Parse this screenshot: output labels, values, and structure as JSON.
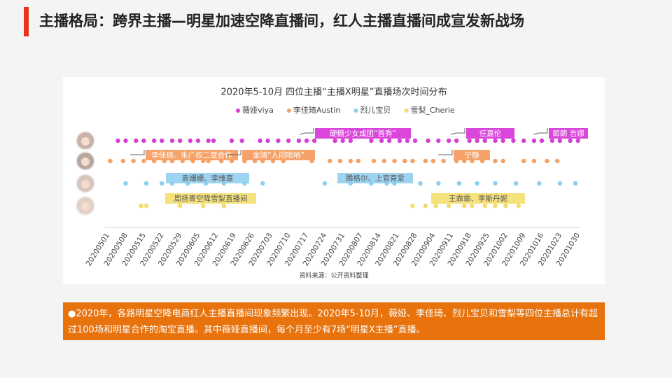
{
  "header": {
    "title": "主播格局：跨界主播—明星加速空降直播间，红人主播直播间成宣发新战场"
  },
  "chart_data": {
    "type": "scatter",
    "title": "2020年5-10月 四位主播“主播X明星”直播场次时间分布",
    "xticks": [
      "20200501",
      "20200508",
      "20200515",
      "20200522",
      "20200529",
      "20200605",
      "20200612",
      "20200619",
      "20200626",
      "20200703",
      "20200710",
      "20200717",
      "20200724",
      "20200731",
      "20200807",
      "20200814",
      "20200821",
      "20200828",
      "20200904",
      "20200911",
      "20200918",
      "20200925",
      "20201002",
      "20201009",
      "20201016",
      "20201023",
      "20201030"
    ],
    "series": [
      {
        "name": "薇娅viya",
        "color": "#d63fd6",
        "x": [
          "20200506",
          "20200509",
          "20200513",
          "20200516",
          "20200520",
          "20200523",
          "20200527",
          "20200530",
          "20200603",
          "20200606",
          "20200610",
          "20200612",
          "20200619",
          "20200623",
          "20200630",
          "20200703",
          "20200707",
          "20200711",
          "20200715",
          "20200718",
          "20200721",
          "20200729",
          "20200801",
          "20200804",
          "20200812",
          "20200816",
          "20200819",
          "20200823",
          "20200826",
          "20200829",
          "20200903",
          "20200907",
          "20200911",
          "20200914",
          "20200919",
          "20200922",
          "20200925",
          "20200929",
          "20201002",
          "20201006",
          "20201010",
          "20201014",
          "20201017",
          "20201021",
          "20201024",
          "20201028",
          "20201031"
        ]
      },
      {
        "name": "李佳琦Austin",
        "color": "#f6a163",
        "x": [
          "20200503",
          "20200508",
          "20200512",
          "20200516",
          "20200520",
          "20200524",
          "20200527",
          "20200531",
          "20200604",
          "20200608",
          "20200610",
          "20200615",
          "20200619",
          "20200624",
          "20200628",
          "20200701",
          "20200705",
          "20200709",
          "20200720",
          "20200727",
          "20200731",
          "20200804",
          "20200807",
          "20200813",
          "20200817",
          "20200821",
          "20200825",
          "20200828",
          "20200902",
          "20200905",
          "20200909",
          "20200914",
          "20200917",
          "20200920",
          "20200924",
          "20200929",
          "20201002",
          "20201010",
          "20201014",
          "20201019",
          "20201023"
        ]
      },
      {
        "name": "烈儿宝贝",
        "color": "#8ccdf0",
        "x": [
          "20200509",
          "20200517",
          "20200523",
          "20200527",
          "20200602",
          "20200609",
          "20200616",
          "20200624",
          "20200701",
          "20200725",
          "20200804",
          "20200812",
          "20200818",
          "20200821",
          "20200831",
          "20200907",
          "20200915",
          "20200922",
          "20200929",
          "20201007",
          "20201016",
          "20201024",
          "20201030"
        ]
      },
      {
        "name": "雪梨_Cherie",
        "color": "#f3dc6b",
        "x": [
          "20200515",
          "20200517",
          "20200530",
          "20200608",
          "20200616",
          "20200828",
          "20200902",
          "20200906",
          "20200911",
          "20200917",
          "20200920",
          "20200925",
          "20200929",
          "20201003",
          "20201008"
        ]
      }
    ],
    "annotations": [
      "硬糖少女成团“首秀”",
      "任嘉伦",
      "郎朗 吉娜",
      "李佳琦、朱广权二度合作",
      "金靖“人间唢呐”",
      "宁静",
      "袁姗姗、李维嘉",
      "腾格尔、上官喜爱",
      "周扬青空降雪梨直播间",
      "王霏霏、李斯丹妮"
    ],
    "source": "资料来源：公开资料整理"
  },
  "footer": {
    "text": "●2020年，各路明星空降电商红人主播直播间现象频繁出现。2020年5-10月，薇娅、李佳琦、烈儿宝贝和雪梨等四位主播总计有超过100场和明星合作的淘宝直播。其中薇娅直播间，每个月至少有7场“明星X主播”直播。"
  }
}
